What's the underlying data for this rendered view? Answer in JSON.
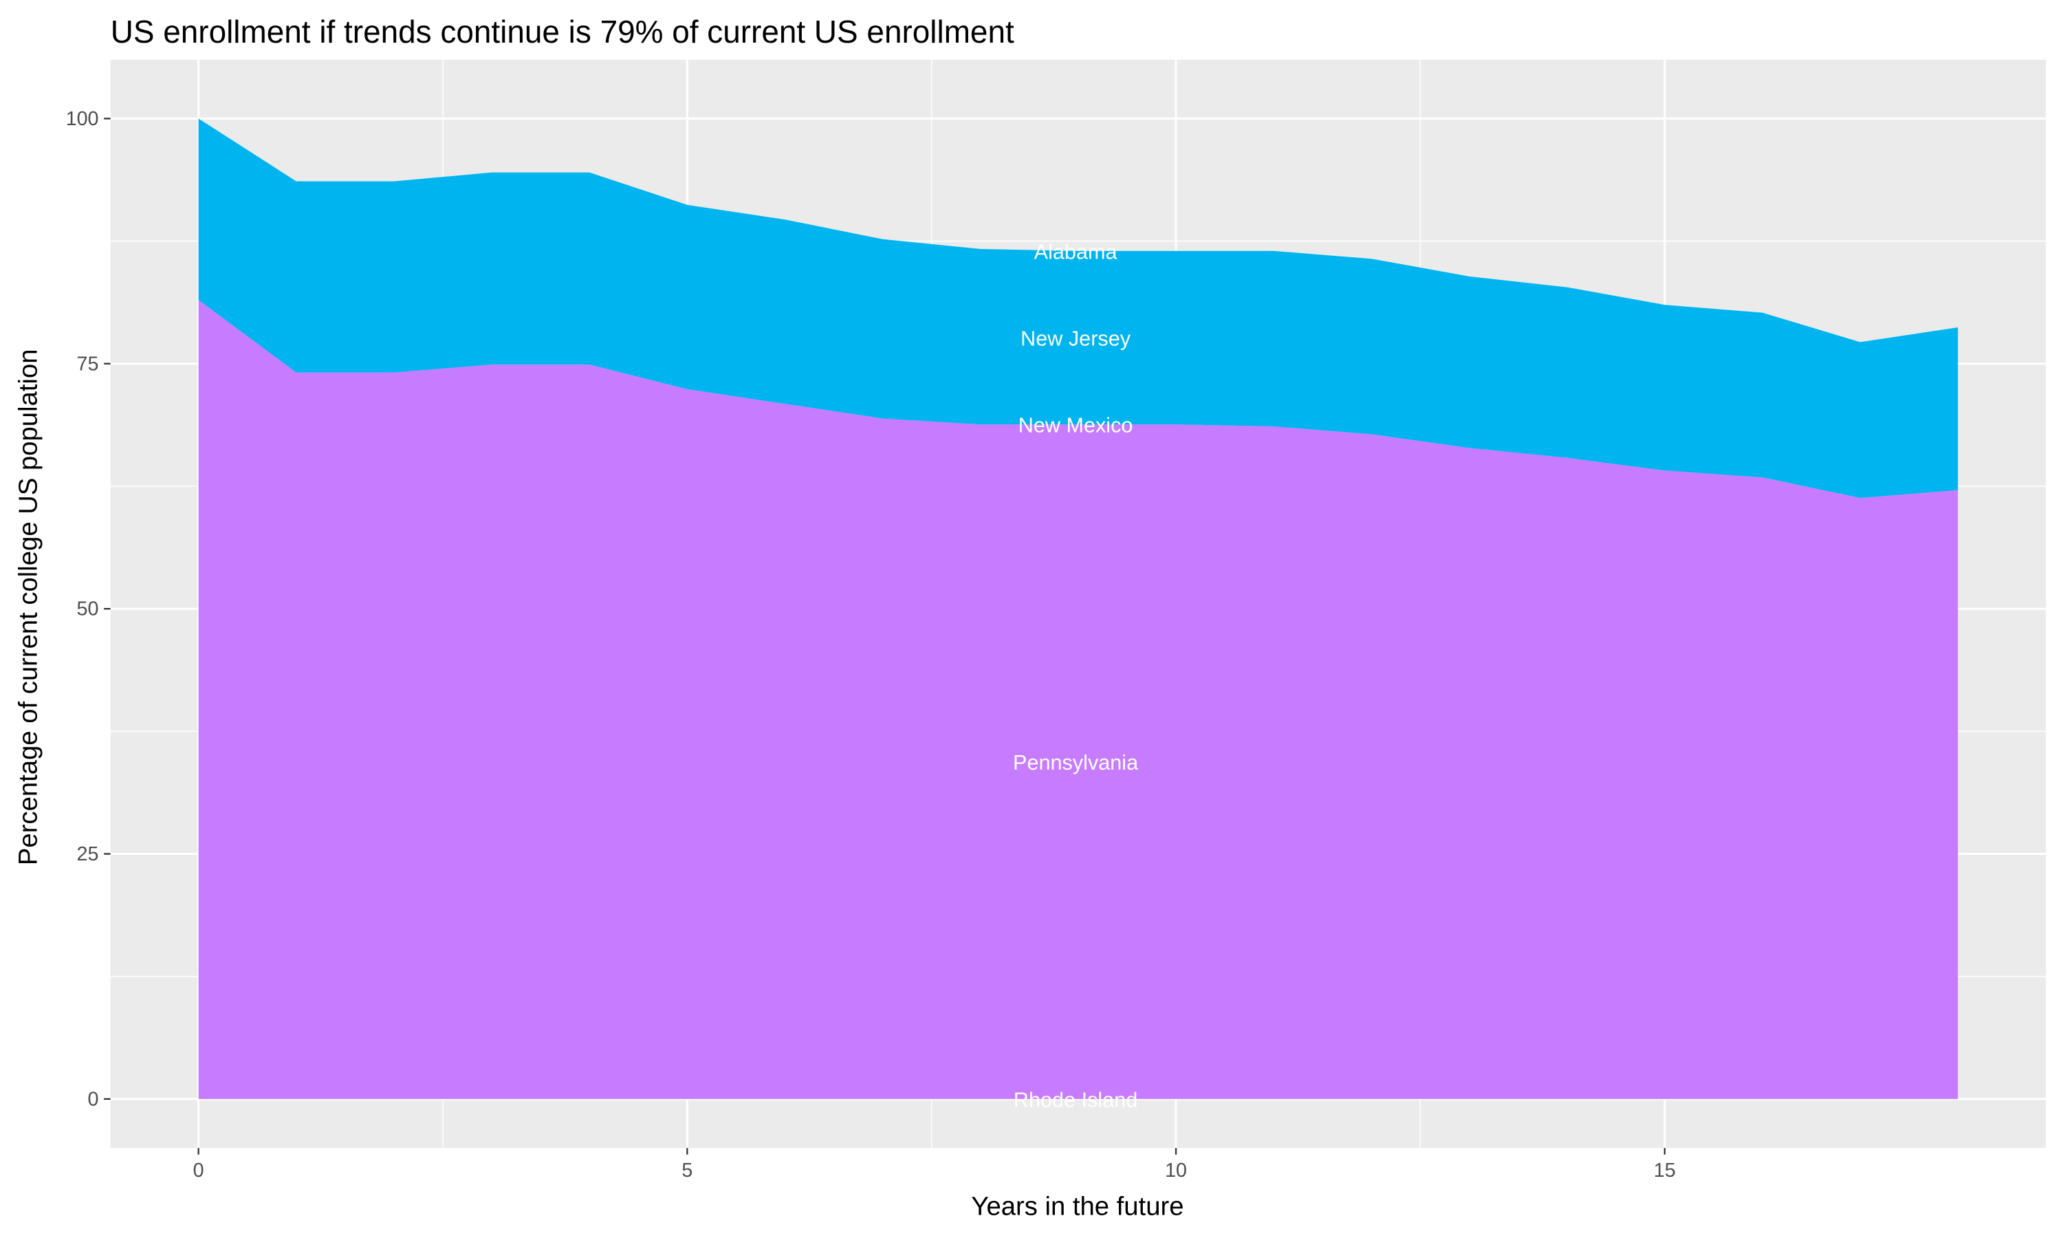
{
  "chart_data": {
    "type": "area",
    "stacked": true,
    "title": "US enrollment if trends continue is 79% of current US enrollment",
    "xlabel": "Years in the future",
    "ylabel": "Percentage of current college US population",
    "x": [
      0,
      1,
      2,
      3,
      4,
      5,
      6,
      7,
      8,
      9,
      10,
      11,
      12,
      13,
      14,
      15,
      16,
      17,
      18
    ],
    "xlim": [
      -0.9,
      18.9
    ],
    "ylim": [
      -5,
      106
    ],
    "xticks": [
      0,
      5,
      10,
      15
    ],
    "yticks": [
      0,
      25,
      50,
      75,
      100
    ],
    "grid": true,
    "legend": "none",
    "label_x": 9,
    "series": [
      {
        "name": "Rhode Island",
        "color": "#F8766D",
        "values": [
          0,
          0,
          0,
          0,
          0,
          0,
          0,
          0,
          0,
          0,
          0,
          0,
          0,
          0,
          0,
          0,
          0,
          0,
          0
        ]
      },
      {
        "name": "Pennsylvania",
        "color": "#C77CFF",
        "values": [
          81.5,
          74.1,
          74.1,
          74.9,
          74.9,
          72.4,
          70.9,
          69.4,
          68.8,
          68.8,
          68.8,
          68.6,
          67.8,
          66.4,
          65.4,
          64.1,
          63.4,
          61.3,
          62.1
        ]
      },
      {
        "name": "New Mexico",
        "color": "#C77CFF",
        "values": [
          0,
          0,
          0,
          0,
          0,
          0,
          0,
          0,
          0,
          0,
          0,
          0,
          0,
          0,
          0,
          0,
          0,
          0,
          0
        ]
      },
      {
        "name": "New Jersey",
        "color": "#00B4F0",
        "values": [
          18.5,
          19.5,
          19.5,
          19.6,
          19.6,
          18.8,
          18.8,
          18.3,
          17.9,
          17.7,
          17.7,
          17.9,
          17.9,
          17.5,
          17.4,
          16.9,
          16.8,
          15.9,
          16.6
        ]
      },
      {
        "name": "Alabama",
        "color": "#00B4F0",
        "values": [
          0,
          0,
          0,
          0,
          0,
          0,
          0,
          0,
          0,
          0,
          0,
          0,
          0,
          0,
          0,
          0,
          0,
          0,
          0
        ]
      }
    ],
    "colors": {
      "panel": "#EBEBEB",
      "grid": "#FFFFFF",
      "label": "#FFFFFF"
    }
  }
}
